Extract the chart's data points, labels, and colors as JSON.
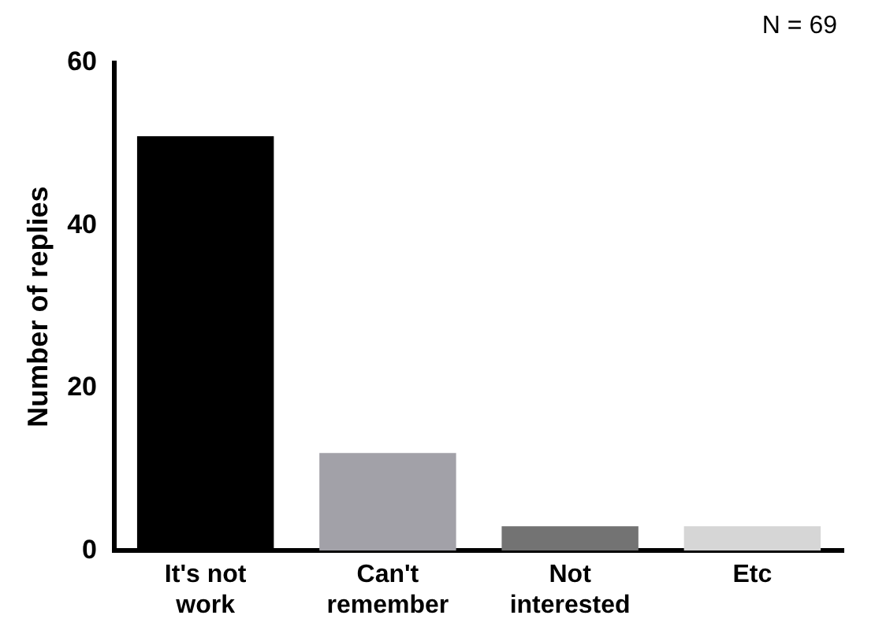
{
  "chart_data": {
    "type": "bar",
    "ylabel": "Number of replies",
    "annotations": [
      "N = 69"
    ],
    "categories": [
      "It's not work",
      "Can't remember",
      "Not interested",
      "Etc"
    ],
    "values": [
      51,
      12,
      3,
      3
    ],
    "colors": [
      "#000000",
      "#a2a1a8",
      "#737373",
      "#d6d6d6"
    ],
    "ylim": [
      0,
      60
    ],
    "yticks": [
      0,
      20,
      40,
      60
    ],
    "grid": false,
    "legend": false
  }
}
